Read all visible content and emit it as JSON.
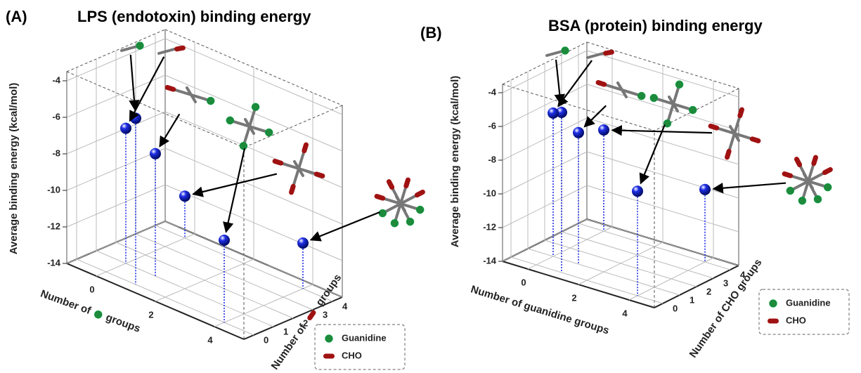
{
  "chart_data": [
    {
      "type": "scatter3d",
      "panel_label": "(A)",
      "title": "LPS (endotoxin) binding energy",
      "z_label": "Average binding energy (kcal/mol)",
      "x_label": [
        "Number of",
        "groups"
      ],
      "y_label": [
        "Number of",
        "groups"
      ],
      "x": [
        1,
        0,
        1,
        4,
        0,
        4
      ],
      "y": [
        0,
        1,
        1,
        0,
        4,
        4
      ],
      "z": [
        -4.9,
        -6.6,
        -7.3,
        -9.5,
        -11.7,
        -11.5
      ],
      "color": "#1f2fe6",
      "xlim": [
        -1,
        5
      ],
      "xticks": [
        0,
        2,
        4
      ],
      "ylim": [
        -0.5,
        4.5
      ],
      "yticks": [
        0,
        1,
        2,
        3,
        4
      ],
      "zlim": [
        -14,
        -3.5
      ],
      "zticks": [
        -14,
        -12,
        -10,
        -8,
        -6,
        -4
      ],
      "grid": true,
      "legend": [
        {
          "name": "Guanidine",
          "color": "#1d8a3c"
        },
        {
          "name": "CHO",
          "color": "#a01212"
        }
      ]
    },
    {
      "type": "scatter3d",
      "panel_label": "(B)",
      "title": "BSA (protein) binding energy",
      "z_label": "Average binding energy (kcal/mol)",
      "x_label": [
        "Number of guanidine groups"
      ],
      "y_label": [
        "Number of CHO groups"
      ],
      "x": [
        1,
        0,
        1,
        4,
        0,
        4
      ],
      "y": [
        0,
        1,
        1,
        0,
        4,
        4
      ],
      "z": [
        -4.5,
        -5.5,
        -6.2,
        -7.8,
        -8.0,
        -9.7
      ],
      "color": "#1f2fe6",
      "xlim": [
        -1,
        5
      ],
      "xticks": [
        0,
        2,
        4
      ],
      "ylim": [
        -0.5,
        4.5
      ],
      "yticks": [
        0,
        1,
        2,
        3,
        4
      ],
      "zlim": [
        -14,
        -3.5
      ],
      "zticks": [
        -14,
        -12,
        -10,
        -8,
        -6,
        -4
      ],
      "grid": true,
      "legend": [
        {
          "name": "Guanidine",
          "color": "#1d8a3c"
        },
        {
          "name": "CHO",
          "color": "#a01212"
        }
      ]
    }
  ]
}
